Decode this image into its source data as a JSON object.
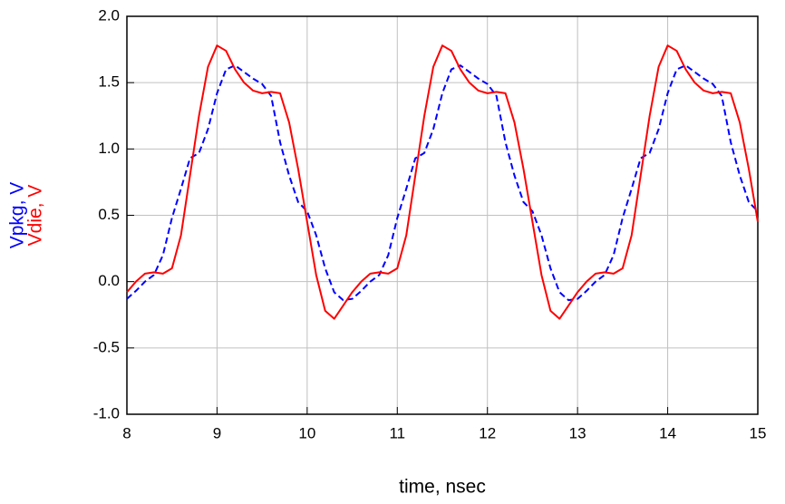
{
  "chart_data": {
    "type": "line",
    "x_label": "time, nsec",
    "x": [
      8,
      8.1,
      8.2,
      8.3,
      8.4,
      8.5,
      8.6,
      8.7,
      8.8,
      8.9,
      9,
      9.1,
      9.2,
      9.3,
      9.4,
      9.5,
      9.6,
      9.7,
      9.8,
      9.9,
      10,
      10.1,
      10.2,
      10.3,
      10.4,
      10.5,
      10.6,
      10.7,
      10.8,
      10.9,
      11,
      11.1,
      11.2,
      11.3,
      11.4,
      11.5,
      11.6,
      11.7,
      11.8,
      11.9,
      12,
      12.1,
      12.2,
      12.3,
      12.4,
      12.5,
      12.6,
      12.7,
      12.8,
      12.9,
      13,
      13.1,
      13.2,
      13.3,
      13.4,
      13.5,
      13.6,
      13.7,
      13.8,
      13.9,
      14,
      14.1,
      14.2,
      14.3,
      14.4,
      14.5,
      14.6,
      14.7,
      14.8,
      14.9,
      15
    ],
    "series": [
      {
        "name": "Vpkg, V",
        "color": "#0000ff",
        "dashed": true,
        "values": [
          -0.13,
          -0.07,
          0,
          0.05,
          0.2,
          0.48,
          0.7,
          0.93,
          0.97,
          1.15,
          1.42,
          1.6,
          1.63,
          1.58,
          1.53,
          1.49,
          1.4,
          1.05,
          0.8,
          0.6,
          0.53,
          0.35,
          0.1,
          -0.08,
          -0.14,
          -0.13,
          -0.07,
          0,
          0.05,
          0.2,
          0.48,
          0.7,
          0.93,
          0.97,
          1.15,
          1.42,
          1.6,
          1.63,
          1.58,
          1.53,
          1.49,
          1.4,
          1.05,
          0.8,
          0.6,
          0.53,
          0.35,
          0.1,
          -0.08,
          -0.14,
          -0.13,
          -0.07,
          0,
          0.05,
          0.2,
          0.48,
          0.7,
          0.93,
          0.97,
          1.15,
          1.42,
          1.6,
          1.63,
          1.58,
          1.53,
          1.49,
          1.4,
          1.05,
          0.8,
          0.6,
          0.53
        ]
      },
      {
        "name": "Vdie, V",
        "color": "#ff0000",
        "dashed": false,
        "values": [
          -0.08,
          0,
          0.06,
          0.07,
          0.06,
          0.1,
          0.35,
          0.8,
          1.25,
          1.62,
          1.78,
          1.74,
          1.6,
          1.5,
          1.44,
          1.42,
          1.43,
          1.42,
          1.2,
          0.85,
          0.45,
          0.05,
          -0.22,
          -0.28,
          -0.18,
          -0.08,
          0,
          0.06,
          0.07,
          0.06,
          0.1,
          0.35,
          0.8,
          1.25,
          1.62,
          1.78,
          1.74,
          1.6,
          1.5,
          1.44,
          1.42,
          1.43,
          1.42,
          1.2,
          0.85,
          0.45,
          0.05,
          -0.22,
          -0.28,
          -0.18,
          -0.08,
          0,
          0.06,
          0.07,
          0.06,
          0.1,
          0.35,
          0.8,
          1.25,
          1.62,
          1.78,
          1.74,
          1.6,
          1.5,
          1.44,
          1.42,
          1.43,
          1.42,
          1.2,
          0.85,
          0.45
        ]
      }
    ],
    "xlim": [
      8,
      15
    ],
    "xticks": [
      8,
      9,
      10,
      11,
      12,
      13,
      14,
      15
    ],
    "ylim": [
      -1,
      2
    ],
    "yticks": [
      {
        "value": -1,
        "label": "-1.0"
      },
      -0.5,
      {
        "value": 0,
        "label": "0.0"
      },
      0.5,
      {
        "value": 1,
        "label": "1.0"
      },
      1.5,
      {
        "value": 2,
        "label": "2.0"
      }
    ],
    "grid": true
  }
}
